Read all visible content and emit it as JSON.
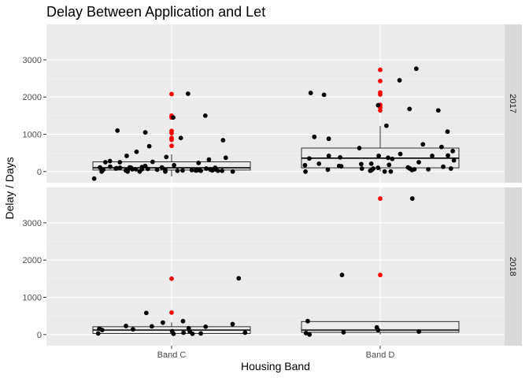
{
  "chart_data": {
    "type": "box-jitter-faceted",
    "title": "Delay Between Application and Let",
    "xlabel": "Housing Band",
    "ylabel": "Delay / Days",
    "categories": [
      "Band C",
      "Band D"
    ],
    "ylim": [
      -300,
      3950
    ],
    "yticks": [
      0,
      1000,
      2000,
      3000
    ],
    "grid": true,
    "colors": {
      "panel_bg": "#EBEBEB",
      "grid_major": "#FFFFFF",
      "strip_bg": "#D9D9D9",
      "point": "#000000",
      "outlier": "#FF0000",
      "box_line": "#000000"
    },
    "facets": [
      {
        "label": "2017",
        "boxes": [
          {
            "category": "Band C",
            "min": -130,
            "q1": 40,
            "median": 100,
            "q3": 260,
            "max": 460,
            "outliers": [
              2080,
              1500,
              1450,
              1090,
              1030,
              900,
              850,
              690
            ]
          },
          {
            "category": "Band D",
            "min": 0,
            "q1": 100,
            "median": 360,
            "q3": 630,
            "max": 1220,
            "outliers": [
              2730,
              2430,
              2120,
              2070,
              1790,
              1720,
              1640
            ]
          }
        ],
        "points": [
          {
            "category": "Band C",
            "values": [
              100,
              20,
              50,
              0,
              1500,
              1050,
              230,
              420,
              1100,
              900,
              1450,
              260,
              20,
              50,
              0,
              110,
              60,
              30,
              0,
              80,
              60,
              130,
              20,
              390,
              -190,
              60,
              100,
              30,
              0,
              40,
              150,
              30,
              60,
              20,
              50,
              120,
              250,
              80,
              60,
              0,
              40,
              30,
              280,
              530,
              70,
              90,
              370,
              110,
              680,
              20,
              50,
              100,
              30,
              320,
              170,
              2090,
              840,
              250,
              110
            ]
          },
          {
            "category": "Band D",
            "values": [
              380,
              80,
              140,
              180,
              200,
              0,
              80,
              470,
              60,
              550,
              1680,
              880,
              2110,
              2760,
              1780,
              40,
              80,
              110,
              370,
              1070,
              210,
              350,
              100,
              300,
              420,
              1640,
              630,
              170,
              660,
              80,
              40,
              250,
              420,
              430,
              0,
              730,
              50,
              130,
              1230,
              930,
              60,
              20,
              0,
              420,
              340,
              2060,
              2450,
              150,
              210
            ]
          }
        ]
      },
      {
        "label": "2018",
        "boxes": [
          {
            "category": "Band C",
            "min": 0,
            "q1": 30,
            "median": 120,
            "q3": 210,
            "max": 330,
            "outliers": [
              1500,
              590
            ]
          },
          {
            "category": "Band D",
            "min": 0,
            "q1": 60,
            "median": 120,
            "q3": 350,
            "max": 360,
            "outliers": [
              3650,
              1600
            ]
          }
        ],
        "points": [
          {
            "category": "Band C",
            "values": [
              140,
              20,
              30,
              320,
              220,
              20,
              30,
              80,
              1510,
              580,
              50,
              170,
              90,
              360,
              50,
              280,
              120,
              160,
              210,
              230
            ]
          },
          {
            "category": "Band D",
            "values": [
              1600,
              60,
              190,
              3650,
              360,
              80,
              0,
              40,
              120
            ]
          }
        ]
      }
    ]
  }
}
